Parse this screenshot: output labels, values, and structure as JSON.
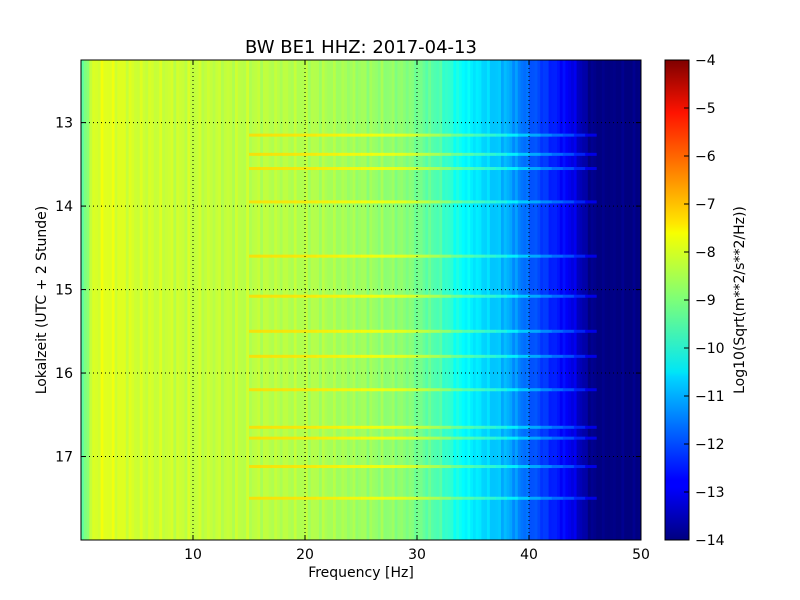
{
  "chart_data": {
    "type": "heatmap",
    "title": "BW BE1 HHZ: 2017-04-13",
    "xlabel": "Frequency [Hz]",
    "ylabel": "Lokalzeit (UTC + 2 Stunde)",
    "xlim": [
      0,
      50
    ],
    "ylim": [
      12.25,
      18.0
    ],
    "x_ticks": [
      10,
      20,
      30,
      40,
      50
    ],
    "y_ticks": [
      13,
      14,
      15,
      16,
      17
    ],
    "y_axis_inverted": true,
    "grid": true,
    "colormap": "jet",
    "colorbar": {
      "label": "Log10(Sqrt(m**2/s**2/Hz))",
      "range": [
        -14,
        -4
      ],
      "ticks": [
        -4,
        -5,
        -6,
        -7,
        -8,
        -9,
        -10,
        -11,
        -12,
        -13,
        -14
      ]
    },
    "spectrum_profile": {
      "frequency_hz": [
        0,
        1,
        2,
        5,
        10,
        15,
        20,
        25,
        29,
        32,
        34,
        36,
        38,
        40,
        42,
        44,
        45,
        46,
        50
      ],
      "level": [
        -9.6,
        -8.2,
        -8.0,
        -8.2,
        -8.3,
        -8.4,
        -8.5,
        -8.7,
        -8.9,
        -9.5,
        -10.2,
        -10.6,
        -11.0,
        -11.8,
        -12.4,
        -13.0,
        -13.7,
        -14.0,
        -14.0
      ]
    },
    "event_times_hours": [
      13.15,
      13.38,
      13.55,
      13.95,
      14.6,
      15.08,
      15.5,
      15.8,
      16.2,
      16.65,
      16.78,
      17.12,
      17.5
    ]
  }
}
